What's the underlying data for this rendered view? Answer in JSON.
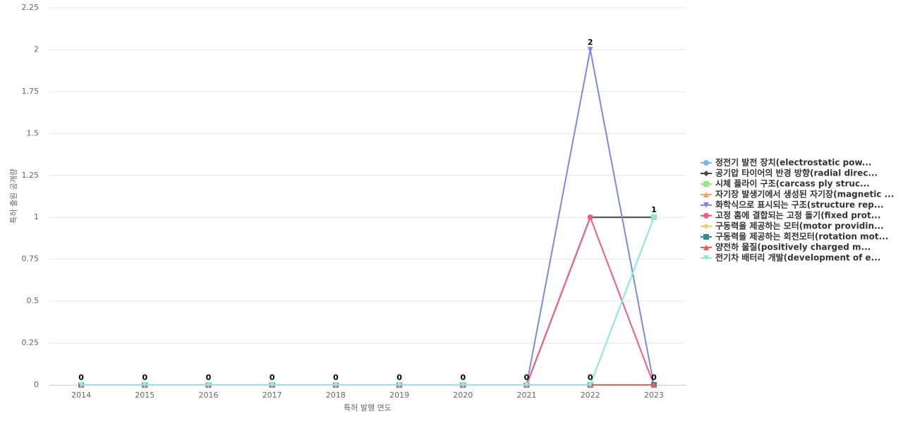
{
  "chart_data": {
    "type": "line",
    "x_label": "특허 발행 연도",
    "y_label": "특허 출원 공개량",
    "categories": [
      "2014",
      "2015",
      "2016",
      "2017",
      "2018",
      "2019",
      "2020",
      "2021",
      "2022",
      "2023"
    ],
    "ylim": [
      0,
      2.25
    ],
    "yticks": [
      0,
      0.25,
      0.5,
      0.75,
      1,
      1.25,
      1.5,
      1.75,
      2,
      2.25
    ],
    "grid": true,
    "legend": "right",
    "series": [
      {
        "name": "정전기 발전 장치(electrostatic pow...",
        "color": "#7cb5ec",
        "marker": "circle",
        "values": [
          0,
          0,
          0,
          0,
          0,
          0,
          0,
          0,
          0,
          0
        ]
      },
      {
        "name": "공기압 타이어의 반경 방향(radial direc...",
        "color": "#434348",
        "marker": "diamond",
        "values": [
          0,
          0,
          0,
          0,
          0,
          0,
          0,
          0,
          1,
          1
        ]
      },
      {
        "name": "시체 플라이 구조(carcass ply struc...",
        "color": "#90ed7d",
        "marker": "square",
        "values": [
          0,
          0,
          0,
          0,
          0,
          0,
          0,
          0,
          0,
          1
        ]
      },
      {
        "name": "자기장 발생기에서 생성된 자기장(magnetic ...",
        "color": "#f7a35c",
        "marker": "triangle",
        "values": [
          0,
          0,
          0,
          0,
          0,
          0,
          0,
          0,
          0,
          0
        ]
      },
      {
        "name": "화학식으로 표시되는 구조(structure rep...",
        "color": "#8085e9",
        "marker": "triangle-down",
        "values": [
          0,
          0,
          0,
          0,
          0,
          0,
          0,
          0,
          2,
          0
        ]
      },
      {
        "name": "고정 홈에 결합되는 고정 돌기(fixed prot...",
        "color": "#f15c80",
        "marker": "circle",
        "values": [
          0,
          0,
          0,
          0,
          0,
          0,
          0,
          0,
          1,
          0
        ]
      },
      {
        "name": "구동력을 제공하는 모터(motor providin...",
        "color": "#e4d354",
        "marker": "diamond",
        "values": [
          0,
          0,
          0,
          0,
          0,
          0,
          0,
          0,
          0,
          0
        ]
      },
      {
        "name": "구동력을 제공하는 회전모터(rotation mot...",
        "color": "#2b908f",
        "marker": "square",
        "values": [
          0,
          0,
          0,
          0,
          0,
          0,
          0,
          0,
          0,
          0
        ]
      },
      {
        "name": "양전하 물질(positively charged m...",
        "color": "#f45b5b",
        "marker": "triangle",
        "values": [
          0,
          0,
          0,
          0,
          0,
          0,
          0,
          0,
          0,
          0
        ]
      },
      {
        "name": "전기차 배터리 개발(development of e...",
        "color": "#91e8e1",
        "marker": "triangle-down",
        "values": [
          0,
          0,
          0,
          0,
          0,
          0,
          0,
          0,
          0,
          1
        ]
      }
    ]
  }
}
